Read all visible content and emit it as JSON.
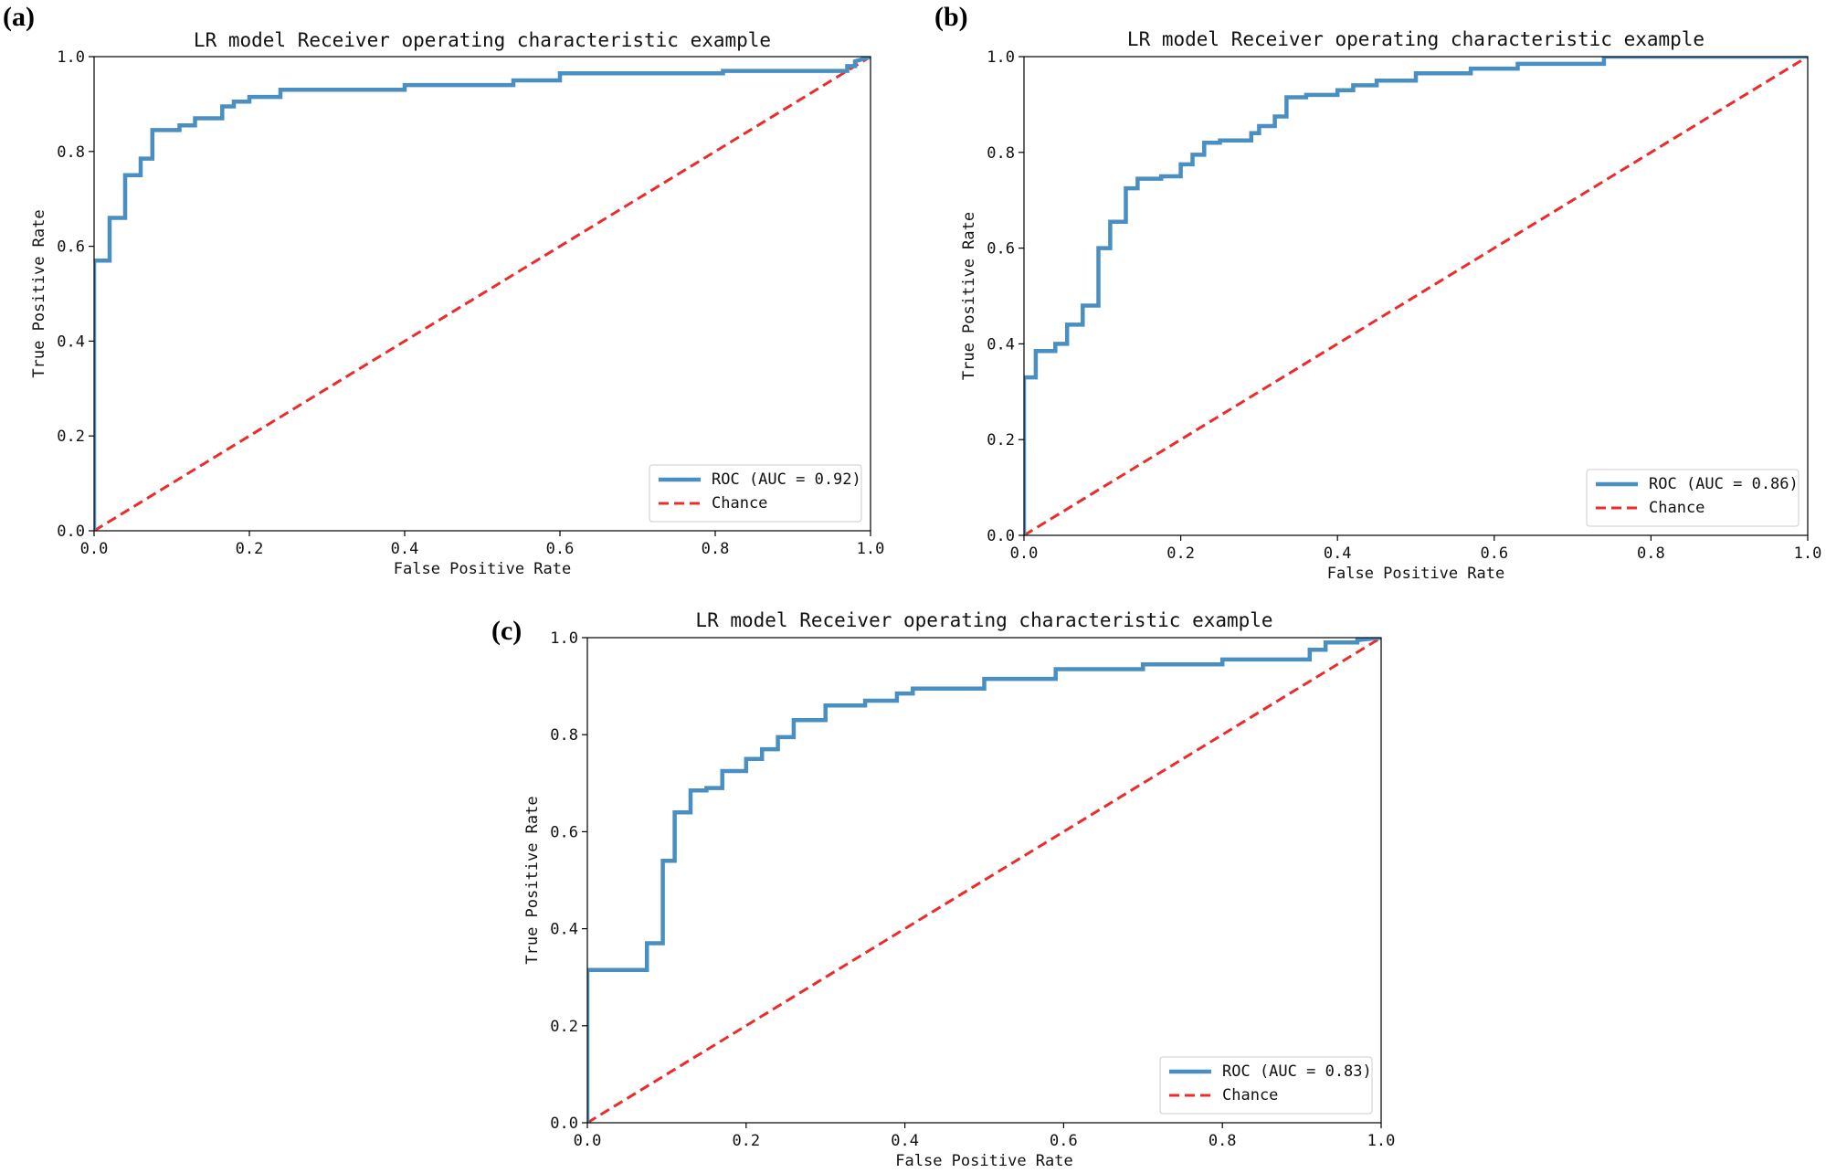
{
  "figure": {
    "background": "#ffffff",
    "roc_color": "#4a8fc2",
    "chance_color": "#ee2b2b"
  },
  "chart_data": [
    {
      "id": "a",
      "panel_label": "(a)",
      "type": "line",
      "title": "LR model Receiver operating characteristic example",
      "xlabel": "False Positive Rate",
      "ylabel": "True Positive Rate",
      "xlim": [
        0,
        1
      ],
      "ylim": [
        0,
        1
      ],
      "xticks": [
        "0.0",
        "0.2",
        "0.4",
        "0.6",
        "0.8",
        "1.0"
      ],
      "yticks": [
        "0.0",
        "0.2",
        "0.4",
        "0.6",
        "0.8",
        "1.0"
      ],
      "legend_position": "lower-right",
      "series": [
        {
          "name": "ROC (AUC = 0.92)",
          "style": "solid",
          "x": [
            0,
            0,
            0.02,
            0.02,
            0.04,
            0.04,
            0.06,
            0.06,
            0.075,
            0.075,
            0.11,
            0.11,
            0.13,
            0.13,
            0.165,
            0.165,
            0.18,
            0.18,
            0.2,
            0.2,
            0.24,
            0.24,
            0.4,
            0.4,
            0.54,
            0.54,
            0.6,
            0.6,
            0.81,
            0.81,
            0.97,
            0.97,
            0.98,
            0.98,
            1
          ],
          "y": [
            0,
            0.57,
            0.57,
            0.66,
            0.66,
            0.75,
            0.75,
            0.785,
            0.785,
            0.845,
            0.845,
            0.855,
            0.855,
            0.87,
            0.87,
            0.895,
            0.895,
            0.905,
            0.905,
            0.915,
            0.915,
            0.93,
            0.93,
            0.94,
            0.94,
            0.95,
            0.95,
            0.965,
            0.965,
            0.97,
            0.97,
            0.98,
            0.98,
            0.99,
            1
          ]
        },
        {
          "name": "Chance",
          "style": "dashed",
          "x": [
            0,
            1
          ],
          "y": [
            0,
            1
          ]
        }
      ]
    },
    {
      "id": "b",
      "panel_label": "(b)",
      "type": "line",
      "title": "LR model Receiver operating characteristic example",
      "xlabel": "False Positive Rate",
      "ylabel": "True Positive Rate",
      "xlim": [
        0,
        1
      ],
      "ylim": [
        0,
        1
      ],
      "xticks": [
        "0.0",
        "0.2",
        "0.4",
        "0.6",
        "0.8",
        "1.0"
      ],
      "yticks": [
        "0.0",
        "0.2",
        "0.4",
        "0.6",
        "0.8",
        "1.0"
      ],
      "legend_position": "lower-right",
      "series": [
        {
          "name": "ROC (AUC = 0.86)",
          "style": "solid",
          "x": [
            0,
            0,
            0.015,
            0.015,
            0.04,
            0.04,
            0.055,
            0.055,
            0.075,
            0.075,
            0.095,
            0.095,
            0.11,
            0.11,
            0.13,
            0.13,
            0.145,
            0.145,
            0.175,
            0.175,
            0.2,
            0.2,
            0.215,
            0.215,
            0.23,
            0.23,
            0.25,
            0.25,
            0.29,
            0.29,
            0.3,
            0.3,
            0.32,
            0.32,
            0.335,
            0.335,
            0.36,
            0.36,
            0.4,
            0.4,
            0.42,
            0.42,
            0.45,
            0.45,
            0.5,
            0.5,
            0.57,
            0.57,
            0.63,
            0.63,
            0.74,
            0.74,
            0.78,
            0.78,
            1
          ],
          "y": [
            0,
            0.33,
            0.33,
            0.385,
            0.385,
            0.4,
            0.4,
            0.44,
            0.44,
            0.48,
            0.48,
            0.6,
            0.6,
            0.655,
            0.655,
            0.725,
            0.725,
            0.745,
            0.745,
            0.75,
            0.75,
            0.775,
            0.775,
            0.795,
            0.795,
            0.82,
            0.82,
            0.825,
            0.825,
            0.84,
            0.84,
            0.855,
            0.855,
            0.875,
            0.875,
            0.915,
            0.915,
            0.92,
            0.92,
            0.93,
            0.93,
            0.94,
            0.94,
            0.95,
            0.95,
            0.965,
            0.965,
            0.975,
            0.975,
            0.985,
            0.985,
            1.0,
            1.0,
            1.0,
            1.0
          ]
        },
        {
          "name": "Chance",
          "style": "dashed",
          "x": [
            0,
            1
          ],
          "y": [
            0,
            1
          ]
        }
      ]
    },
    {
      "id": "c",
      "panel_label": "(c)",
      "type": "line",
      "title": "LR model Receiver operating characteristic example",
      "xlabel": "False Positive Rate",
      "ylabel": "True Positive Rate",
      "xlim": [
        0,
        1
      ],
      "ylim": [
        0,
        1
      ],
      "xticks": [
        "0.0",
        "0.2",
        "0.4",
        "0.6",
        "0.8",
        "1.0"
      ],
      "yticks": [
        "0.0",
        "0.2",
        "0.4",
        "0.6",
        "0.8",
        "1.0"
      ],
      "legend_position": "lower-right",
      "series": [
        {
          "name": "ROC (AUC = 0.83)",
          "style": "solid",
          "x": [
            0,
            0,
            0.075,
            0.075,
            0.095,
            0.095,
            0.11,
            0.11,
            0.13,
            0.13,
            0.15,
            0.15,
            0.17,
            0.17,
            0.2,
            0.2,
            0.22,
            0.22,
            0.24,
            0.24,
            0.26,
            0.26,
            0.3,
            0.3,
            0.35,
            0.35,
            0.39,
            0.39,
            0.41,
            0.41,
            0.5,
            0.5,
            0.59,
            0.59,
            0.7,
            0.7,
            0.8,
            0.8,
            0.91,
            0.91,
            0.93,
            0.93,
            0.97,
            0.97,
            1
          ],
          "y": [
            0,
            0.315,
            0.315,
            0.37,
            0.37,
            0.54,
            0.54,
            0.64,
            0.64,
            0.685,
            0.685,
            0.69,
            0.69,
            0.725,
            0.725,
            0.75,
            0.75,
            0.77,
            0.77,
            0.795,
            0.795,
            0.83,
            0.83,
            0.86,
            0.86,
            0.87,
            0.87,
            0.885,
            0.885,
            0.895,
            0.895,
            0.915,
            0.915,
            0.935,
            0.935,
            0.945,
            0.945,
            0.955,
            0.955,
            0.975,
            0.975,
            0.99,
            0.99,
            0.995,
            1
          ]
        },
        {
          "name": "Chance",
          "style": "dashed",
          "x": [
            0,
            1
          ],
          "y": [
            0,
            1
          ]
        }
      ]
    }
  ]
}
